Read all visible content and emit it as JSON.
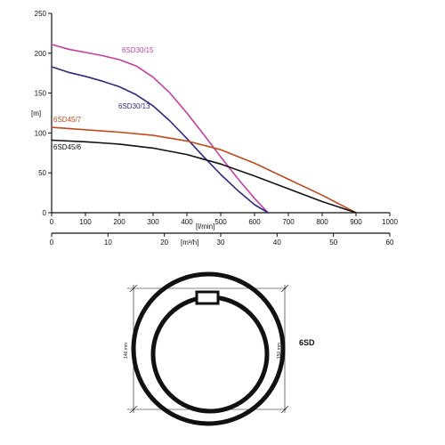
{
  "chart_data": {
    "type": "line",
    "ylabel": "[m]",
    "xlabel": "[l/min]",
    "x2label": "[m³/h]",
    "xlim": [
      0,
      1000
    ],
    "ylim": [
      0,
      250
    ],
    "x2lim": [
      0,
      60
    ],
    "xticks": [
      0,
      100,
      200,
      300,
      400,
      500,
      600,
      700,
      800,
      900,
      1000
    ],
    "yticks": [
      0,
      50,
      100,
      150,
      200,
      250
    ],
    "x2ticks": [
      0,
      10,
      20,
      30,
      40,
      50,
      60
    ],
    "grid": false,
    "series": [
      {
        "name": "6SD30/15",
        "color": "#c23ea0",
        "x": [
          0,
          50,
          100,
          150,
          200,
          250,
          300,
          350,
          400,
          450,
          500,
          550,
          600,
          640
        ],
        "y": [
          211,
          205,
          201,
          197,
          192,
          184,
          170,
          150,
          125,
          98,
          70,
          43,
          18,
          0
        ]
      },
      {
        "name": "6SD30/13",
        "color": "#2e2a80",
        "x": [
          0,
          50,
          100,
          150,
          200,
          250,
          300,
          350,
          400,
          450,
          500,
          550,
          600,
          640
        ],
        "y": [
          183,
          176,
          171,
          165,
          158,
          148,
          134,
          115,
          93,
          70,
          48,
          28,
          10,
          0
        ]
      },
      {
        "name": "6SD45/7",
        "color": "#c04a1e",
        "x": [
          0,
          100,
          200,
          300,
          400,
          500,
          600,
          700,
          800,
          900
        ],
        "y": [
          107,
          104,
          101,
          97,
          90,
          79,
          62,
          42,
          22,
          0
        ]
      },
      {
        "name": "6SD45/6",
        "color": "#111111",
        "x": [
          0,
          100,
          200,
          300,
          400,
          500,
          600,
          700,
          800,
          900
        ],
        "y": [
          91,
          89,
          86,
          81,
          73,
          61,
          46,
          30,
          14,
          0
        ]
      }
    ]
  },
  "diagram": {
    "tag": "6SD",
    "inner_dim": "146 mm",
    "outer_dim": "150 mm"
  }
}
